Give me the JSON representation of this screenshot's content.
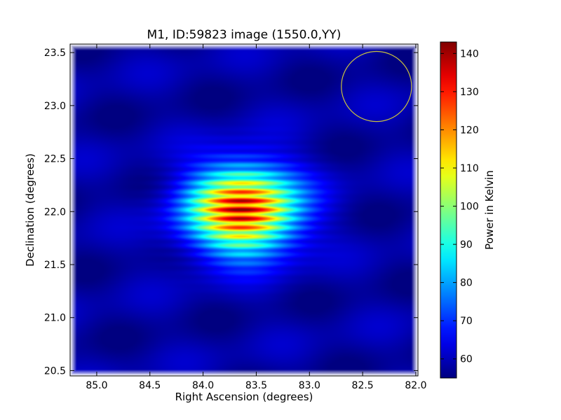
{
  "chart_data": {
    "type": "heatmap",
    "title": "M1, ID:59823 image (1550.0,YY)",
    "xlabel": "Right Ascension (degrees)",
    "ylabel": "Declination (degrees)",
    "xlim": [
      85.25,
      81.98
    ],
    "ylim": [
      20.45,
      23.58
    ],
    "x_ticks": [
      85.0,
      84.5,
      84.0,
      83.5,
      83.0,
      82.5,
      82.0
    ],
    "x_tick_labels": [
      "85.0",
      "84.5",
      "84.0",
      "83.5",
      "83.0",
      "82.5",
      "82.0"
    ],
    "y_ticks": [
      20.5,
      21.0,
      21.5,
      22.0,
      22.5,
      23.0,
      23.5
    ],
    "y_tick_labels": [
      "20.5",
      "21.0",
      "21.5",
      "22.0",
      "22.5",
      "23.0",
      "23.5"
    ],
    "grid": false,
    "colormap": "jet",
    "colorbar": {
      "label": "Power in Kelvin",
      "min": 55,
      "max": 143,
      "ticks": [
        60,
        70,
        80,
        90,
        100,
        110,
        120,
        130,
        140
      ],
      "tick_labels": [
        "60",
        "70",
        "80",
        "90",
        "100",
        "110",
        "120",
        "130",
        "140"
      ]
    },
    "background_level_k": 58,
    "source": {
      "ra": 83.63,
      "dec": 22.02,
      "peak_k": 143,
      "sigma_ra_deg": 0.35,
      "sigma_dec_deg": 0.28,
      "ripple_period_dec_deg": 0.085
    },
    "beam_circle": {
      "ra": 82.37,
      "dec": 23.18,
      "radius_deg": 0.33,
      "color": "#c8c040"
    }
  }
}
